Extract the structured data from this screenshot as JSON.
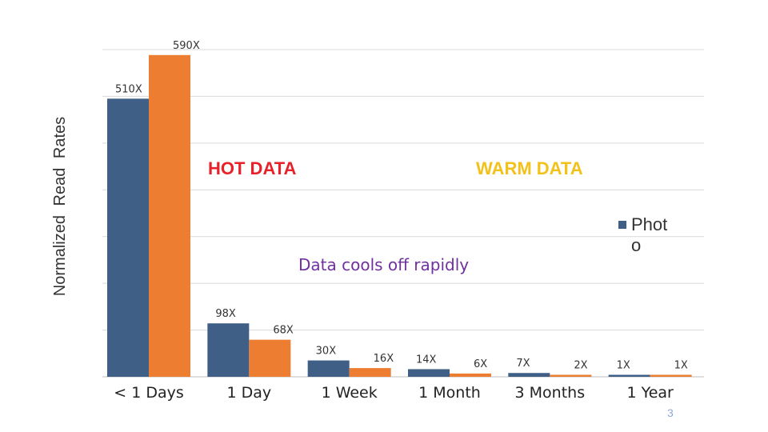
{
  "chart_data": {
    "type": "bar",
    "ylabel": "Normalized Read Rates",
    "categories": [
      "< 1 Days",
      "1 Day",
      "1 Week",
      "1 Month",
      "3 Months",
      "1 Year"
    ],
    "series": [
      {
        "name": "Photo",
        "color": "#3f5f86",
        "values": [
          510,
          98,
          30,
          14,
          7,
          1
        ],
        "labels": [
          "510X",
          "98X",
          "30X",
          "14X",
          "7X",
          "1X"
        ]
      },
      {
        "name": "",
        "color": "#ed7d31",
        "values": [
          590,
          68,
          16,
          6,
          2,
          1
        ],
        "labels": [
          "590X",
          "68X",
          "16X",
          "6X",
          "2X",
          "1X"
        ]
      }
    ],
    "ylim": [
      0,
      600
    ],
    "grid": true,
    "legend_position": "right"
  },
  "annotations": {
    "hot": "HOT DATA",
    "warm": "WARM DATA",
    "cooling": "Data cools off rapidly"
  },
  "legend": {
    "label": "Photo"
  },
  "colors": {
    "hot": "#e8202a",
    "warm": "#f2c21a",
    "cooling": "#7030a0"
  },
  "page_number": "3"
}
